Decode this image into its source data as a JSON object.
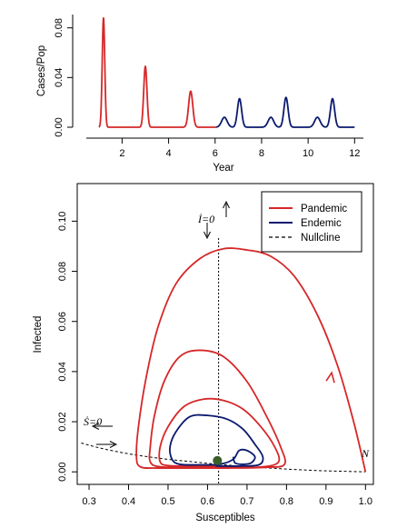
{
  "colors": {
    "pandemic": "#d62728",
    "endemic": "#0b1a6e",
    "nullcline": "#000000",
    "fixed_point": "#3b5e2b"
  },
  "chart_data": [
    {
      "type": "line",
      "xlabel": "Year",
      "ylabel": "Cases/Pop",
      "xlim": [
        0.5,
        12.3
      ],
      "ylim": [
        0,
        0.09
      ],
      "xticks": [
        "2",
        "4",
        "6",
        "8",
        "10",
        "12"
      ],
      "xtick_values": [
        2,
        4,
        6,
        8,
        10,
        12
      ],
      "yticks": [
        "0.00",
        "0.04",
        "0.08"
      ],
      "ytick_values": [
        0,
        0.04,
        0.08
      ],
      "series": [
        {
          "color_key": "pandemic",
          "peaks": [
            {
              "t": 1.2,
              "h": 0.088,
              "w": 0.055
            },
            {
              "t": 3.0,
              "h": 0.049,
              "w": 0.07
            },
            {
              "t": 4.95,
              "h": 0.029,
              "w": 0.09
            }
          ],
          "t_range": [
            1.0,
            6.05
          ]
        },
        {
          "color_key": "endemic",
          "peaks": [
            {
              "t": 6.4,
              "h": 0.008,
              "w": 0.12
            },
            {
              "t": 7.05,
              "h": 0.023,
              "w": 0.09
            },
            {
              "t": 8.4,
              "h": 0.008,
              "w": 0.12
            },
            {
              "t": 9.05,
              "h": 0.024,
              "w": 0.09
            },
            {
              "t": 10.4,
              "h": 0.008,
              "w": 0.12
            },
            {
              "t": 11.05,
              "h": 0.023,
              "w": 0.09
            }
          ],
          "t_range": [
            6.05,
            12.0
          ]
        }
      ]
    },
    {
      "type": "line",
      "xlabel": "Susceptibles",
      "ylabel": "Infected",
      "xlim": [
        0.27,
        1.02
      ],
      "ylim": [
        -0.005,
        0.115
      ],
      "xticks": [
        "0.3",
        "0.4",
        "0.5",
        "0.6",
        "0.7",
        "0.8",
        "0.9",
        "1.0"
      ],
      "xtick_values": [
        0.3,
        0.4,
        0.5,
        0.6,
        0.7,
        0.8,
        0.9,
        1.0
      ],
      "yticks": [
        "0.00",
        "0.02",
        "0.04",
        "0.06",
        "0.08",
        "0.10"
      ],
      "ytick_values": [
        0,
        0.02,
        0.04,
        0.06,
        0.08,
        0.1
      ],
      "legend": {
        "position": "top-right",
        "entries": [
          "Pandemic",
          "Endemic",
          "Nullcline"
        ]
      },
      "annotations": {
        "i_null": "İ=0",
        "s_null": "Ṡ=0",
        "n_label": "N"
      },
      "fixed_point": {
        "x": 0.625,
        "y": 0.0045
      },
      "i_nullcline_x": 0.628,
      "pandemic_path": [
        [
          1.0,
          0.0
        ],
        [
          0.97,
          0.02
        ],
        [
          0.93,
          0.042
        ],
        [
          0.88,
          0.062
        ],
        [
          0.82,
          0.078
        ],
        [
          0.76,
          0.086
        ],
        [
          0.7,
          0.0885
        ],
        [
          0.64,
          0.089
        ],
        [
          0.58,
          0.085
        ],
        [
          0.52,
          0.075
        ],
        [
          0.475,
          0.058
        ],
        [
          0.445,
          0.038
        ],
        [
          0.425,
          0.018
        ],
        [
          0.42,
          0.006
        ],
        [
          0.43,
          0.002
        ],
        [
          0.47,
          0.0015
        ],
        [
          0.55,
          0.0015
        ],
        [
          0.65,
          0.0015
        ],
        [
          0.75,
          0.0018
        ],
        [
          0.795,
          0.003
        ],
        [
          0.785,
          0.01
        ],
        [
          0.75,
          0.022
        ],
        [
          0.7,
          0.036
        ],
        [
          0.64,
          0.046
        ],
        [
          0.58,
          0.0485
        ],
        [
          0.53,
          0.046
        ],
        [
          0.49,
          0.036
        ],
        [
          0.465,
          0.022
        ],
        [
          0.455,
          0.01
        ],
        [
          0.455,
          0.004
        ],
        [
          0.48,
          0.002
        ],
        [
          0.56,
          0.0018
        ],
        [
          0.66,
          0.0018
        ],
        [
          0.74,
          0.002
        ],
        [
          0.78,
          0.004
        ],
        [
          0.77,
          0.01
        ],
        [
          0.735,
          0.018
        ],
        [
          0.69,
          0.025
        ],
        [
          0.64,
          0.0285
        ],
        [
          0.59,
          0.029
        ],
        [
          0.54,
          0.026
        ],
        [
          0.5,
          0.018
        ],
        [
          0.48,
          0.01
        ],
        [
          0.48,
          0.004
        ],
        [
          0.5,
          0.0025
        ],
        [
          0.56,
          0.0023
        ],
        [
          0.62,
          0.0023
        ]
      ],
      "endemic_path": [
        [
          0.62,
          0.0023
        ],
        [
          0.68,
          0.0023
        ],
        [
          0.73,
          0.0028
        ],
        [
          0.74,
          0.006
        ],
        [
          0.72,
          0.011
        ],
        [
          0.69,
          0.017
        ],
        [
          0.65,
          0.021
        ],
        [
          0.6,
          0.0225
        ],
        [
          0.555,
          0.022
        ],
        [
          0.52,
          0.016
        ],
        [
          0.505,
          0.01
        ],
        [
          0.51,
          0.005
        ],
        [
          0.53,
          0.003
        ],
        [
          0.58,
          0.0028
        ],
        [
          0.63,
          0.003
        ],
        [
          0.665,
          0.005
        ],
        [
          0.68,
          0.0085
        ],
        [
          0.7,
          0.0085
        ],
        [
          0.72,
          0.006
        ],
        [
          0.71,
          0.0035
        ],
        [
          0.69,
          0.003
        ],
        [
          0.67,
          0.0035
        ],
        [
          0.665,
          0.006
        ]
      ],
      "s_nullcline": [
        [
          0.28,
          0.0115
        ],
        [
          0.32,
          0.0098
        ],
        [
          0.36,
          0.0084
        ],
        [
          0.4,
          0.0072
        ],
        [
          0.45,
          0.006
        ],
        [
          0.5,
          0.005
        ],
        [
          0.55,
          0.0042
        ],
        [
          0.6,
          0.0034
        ],
        [
          0.65,
          0.0027
        ],
        [
          0.7,
          0.0021
        ],
        [
          0.75,
          0.0016
        ],
        [
          0.8,
          0.0011
        ],
        [
          0.85,
          0.0007
        ],
        [
          0.9,
          0.0004
        ],
        [
          0.95,
          0.0002
        ],
        [
          1.0,
          0.0
        ]
      ]
    }
  ]
}
